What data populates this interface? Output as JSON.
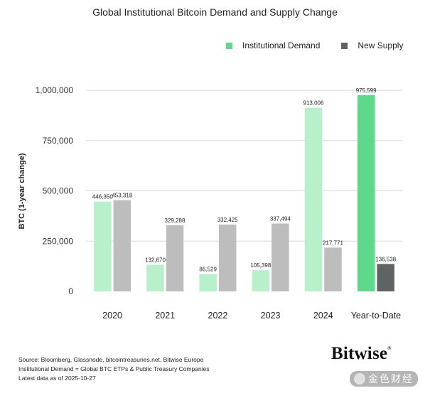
{
  "title": "Global Institutional Bitcoin Demand and Supply Change",
  "legend": {
    "demand_label": "Institutional Demand",
    "supply_label": "New Supply"
  },
  "colors": {
    "demand": "#b8f0cc",
    "demand_highlight": "#5ed98c",
    "supply": "#bdbdbd",
    "supply_highlight": "#5f6365",
    "grid": "#d9d9d9"
  },
  "chart_data": {
    "type": "bar",
    "title": "Global Institutional Bitcoin Demand and Supply Change",
    "xlabel": "",
    "ylabel": "BTC (1-year change)",
    "ylim": [
      0,
      1000000
    ],
    "yticks": [
      0,
      250000,
      500000,
      750000,
      1000000
    ],
    "ytick_labels": [
      "0",
      "250,000",
      "500,000",
      "750,000",
      "1,000,000"
    ],
    "grid": true,
    "legend_position": "top-right",
    "categories": [
      "2020",
      "2021",
      "2022",
      "2023",
      "2024",
      "Year-to-Date"
    ],
    "series": [
      {
        "name": "Institutional Demand",
        "values": [
          446350,
          132670,
          86529,
          105398,
          913006,
          975599
        ],
        "labels": [
          "446,350",
          "132,670",
          "86,529",
          "105,398",
          "913,006",
          "975,599"
        ]
      },
      {
        "name": "New Supply",
        "values": [
          453318,
          329288,
          332425,
          337494,
          217771,
          136538
        ],
        "labels": [
          "453,318",
          "329,288",
          "332,425",
          "337,494",
          "217,771",
          "136,538"
        ]
      }
    ]
  },
  "notes": {
    "source": "Source: Bloomberg, Glassnode, bitcointreasuries.net, Bitwise Europe",
    "definition": "Institutional Demand = Global BTC ETPs & Public Treasury Companies",
    "latest": "Latest data as of 2025-10-27"
  },
  "logo": {
    "text": "Bitwise",
    "mark": "®"
  },
  "watermark": {
    "text": "金色财经"
  }
}
